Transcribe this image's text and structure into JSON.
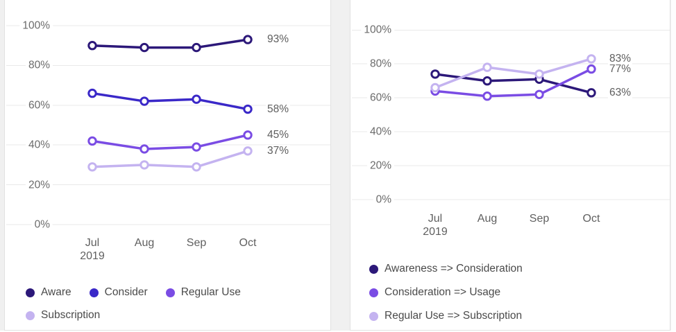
{
  "colors": {
    "page_background": "#f0f0f0",
    "card_background": "#ffffff",
    "card_border": "#e1e1e1",
    "gridline": "#e9e9e9",
    "axis_text": "#6b6b6b",
    "legend_text": "#4a4a4a"
  },
  "chart_data": [
    {
      "type": "line",
      "title": "",
      "x": [
        "Jul",
        "Aug",
        "Sep",
        "Oct"
      ],
      "x_year": "2019",
      "y_ticks": [
        "100%",
        "80%",
        "60%",
        "40%",
        "20%",
        "0%"
      ],
      "ylim": [
        0,
        100
      ],
      "grid": true,
      "legend_position": "bottom",
      "series": [
        {
          "name": "Aware",
          "color": "#2c1879",
          "values": [
            90,
            89,
            89,
            93
          ],
          "end_label": "93%"
        },
        {
          "name": "Consider",
          "color": "#3a28c8",
          "values": [
            66,
            62,
            63,
            58
          ],
          "end_label": "58%"
        },
        {
          "name": "Regular Use",
          "color": "#7a4ce4",
          "values": [
            42,
            38,
            39,
            45
          ],
          "end_label": "45%"
        },
        {
          "name": "Subscription",
          "color": "#c4b3f0",
          "values": [
            29,
            30,
            29,
            37
          ],
          "end_label": "37%"
        }
      ]
    },
    {
      "type": "line",
      "title": "",
      "x": [
        "Jul",
        "Aug",
        "Sep",
        "Oct"
      ],
      "x_year": "2019",
      "y_ticks": [
        "100%",
        "80%",
        "60%",
        "40%",
        "20%",
        "0%"
      ],
      "ylim": [
        0,
        100
      ],
      "grid": true,
      "legend_position": "bottom",
      "series": [
        {
          "name": "Awareness => Consideration",
          "color": "#2c1879",
          "values": [
            74,
            70,
            71,
            63
          ],
          "end_label": "63%"
        },
        {
          "name": "Consideration => Usage",
          "color": "#7a4ce4",
          "values": [
            64,
            61,
            62,
            77
          ],
          "end_label": "77%"
        },
        {
          "name": "Regular Use => Subscription",
          "color": "#c4b3f0",
          "values": [
            66,
            78,
            74,
            83
          ],
          "end_label": "83%"
        }
      ]
    }
  ]
}
